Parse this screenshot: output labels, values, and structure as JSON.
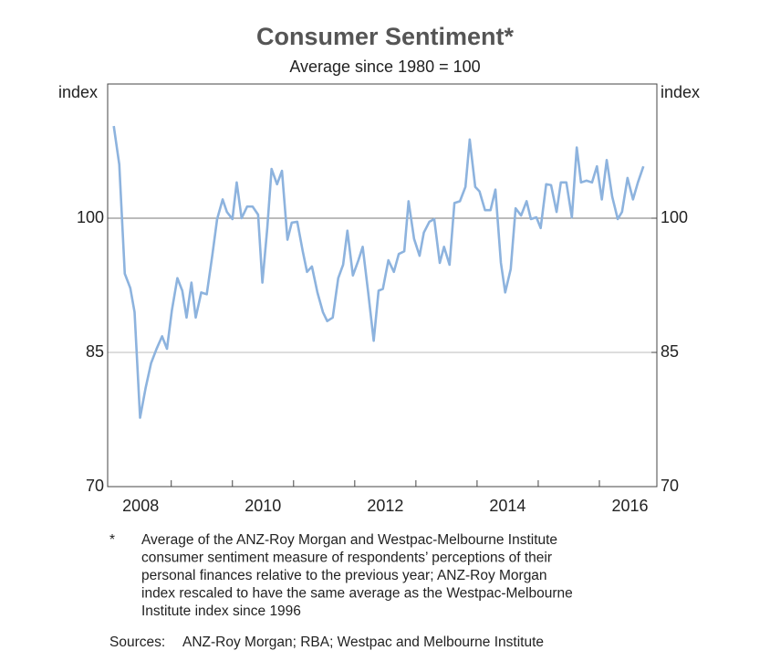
{
  "chart_data": {
    "type": "line",
    "title": "Consumer Sentiment*",
    "subtitle": "Average since 1980 = 100",
    "y_label": "index",
    "y2_label": "index",
    "x": [
      2008.06,
      2008.15,
      2008.24,
      2008.33,
      2008.4,
      2008.49,
      2008.58,
      2008.67,
      2008.76,
      2008.85,
      2008.93,
      2009.01,
      2009.1,
      2009.18,
      2009.25,
      2009.33,
      2009.4,
      2009.49,
      2009.58,
      2009.67,
      2009.75,
      2009.84,
      2009.91,
      2010,
      2010.07,
      2010.15,
      2010.24,
      2010.33,
      2010.42,
      2010.49,
      2010.57,
      2010.64,
      2010.73,
      2010.81,
      2010.9,
      2010.97,
      2011.06,
      2011.15,
      2011.22,
      2011.3,
      2011.39,
      2011.48,
      2011.55,
      2011.64,
      2011.73,
      2011.81,
      2011.88,
      2011.97,
      2012.06,
      2012.13,
      2012.22,
      2012.31,
      2012.39,
      2012.46,
      2012.55,
      2012.64,
      2012.72,
      2012.81,
      2012.88,
      2012.97,
      2013.06,
      2013.13,
      2013.22,
      2013.3,
      2013.39,
      2013.46,
      2013.55,
      2013.63,
      2013.72,
      2013.81,
      2013.88,
      2013.97,
      2014.04,
      2014.13,
      2014.22,
      2014.3,
      2014.39,
      2014.46,
      2014.55,
      2014.63,
      2014.72,
      2014.81,
      2014.88,
      2014.97,
      2015.04,
      2015.13,
      2015.21,
      2015.3,
      2015.37,
      2015.46,
      2015.55,
      2015.63,
      2015.7,
      2015.79,
      2015.88,
      2015.96,
      2016.04,
      2016.12,
      2016.21,
      2016.3,
      2016.37,
      2016.46,
      2016.55,
      2016.63,
      2016.72
    ],
    "series": [
      {
        "color": "#8db3de",
        "values": [
          110.3,
          106,
          93.8,
          92.2,
          89.5,
          77.7,
          81,
          83.8,
          85.4,
          86.8,
          85.4,
          89.7,
          93.3,
          91.9,
          88.9,
          92.8,
          88.9,
          91.7,
          91.5,
          95.8,
          99.9,
          102.1,
          100.7,
          99.9,
          104,
          100,
          101.3,
          101.3,
          100.4,
          92.8,
          98.9,
          105.5,
          103.8,
          105.3,
          97.6,
          99.5,
          99.6,
          96.3,
          94,
          94.6,
          91.7,
          89.5,
          88.5,
          88.9,
          93.3,
          94.8,
          98.6,
          93.6,
          95.3,
          96.8,
          91.7,
          86.3,
          91.9,
          92.1,
          95.3,
          94,
          96,
          96.3,
          101.9,
          97.7,
          95.8,
          98.4,
          99.6,
          99.9,
          95,
          96.8,
          94.8,
          101.7,
          101.9,
          103.5,
          108.8,
          103.5,
          103,
          100.9,
          100.9,
          103.2,
          95,
          91.7,
          94.3,
          101.1,
          100.3,
          101.9,
          99.9,
          100.1,
          98.9,
          103.8,
          103.7,
          100.7,
          104,
          104,
          100.1,
          107.9,
          104,
          104.2,
          104,
          105.8,
          102.1,
          106.5,
          102.4,
          99.9,
          100.7,
          104.5,
          102.1,
          104,
          105.8
        ]
      }
    ],
    "xlim": [
      2007.96,
      2016.94
    ],
    "xticks": [
      2009,
      2010,
      2011,
      2012,
      2013,
      2014,
      2015,
      2016
    ],
    "xtick_labels": [
      {
        "value": 2008.5,
        "label": "2008"
      },
      {
        "value": 2010.5,
        "label": "2010"
      },
      {
        "value": 2012.5,
        "label": "2012"
      },
      {
        "value": 2014.5,
        "label": "2014"
      },
      {
        "value": 2016.5,
        "label": "2016"
      }
    ],
    "ylim": [
      70,
      115
    ],
    "yticks": [
      70,
      85,
      100
    ],
    "y2lim": [
      70,
      115
    ],
    "y2ticks": [
      70,
      85,
      100
    ],
    "grid": true,
    "footnote_marker": "*",
    "footnote": [
      "Average of the ANZ-Roy Morgan and Westpac-Melbourne Institute",
      "consumer sentiment measure of respondents’ perceptions of their",
      "personal finances relative to the previous year; ANZ-Roy Morgan",
      "index rescaled to have the same average as the Westpac-Melbourne",
      "Institute index since 1996"
    ],
    "sources_label": "Sources:",
    "sources": "ANZ-Roy Morgan; RBA; Westpac and Melbourne Institute"
  }
}
